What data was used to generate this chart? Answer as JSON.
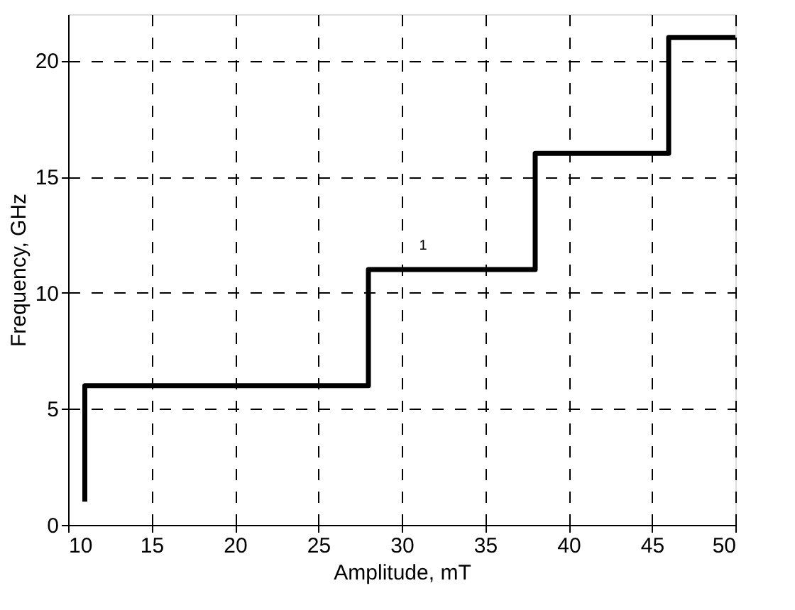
{
  "chart_data": {
    "type": "line",
    "xlabel": "Amplitude, mT",
    "ylabel": "Frequency, GHz",
    "x": [
      11,
      11,
      28,
      28,
      38,
      38,
      46,
      46,
      50
    ],
    "series": [
      {
        "color": "#000000",
        "values": [
          1,
          6,
          6,
          11,
          11,
          16,
          16,
          21,
          21
        ]
      }
    ],
    "xlim": [
      10,
      50
    ],
    "xticks": [
      10,
      15,
      20,
      25,
      30,
      35,
      40,
      45,
      50
    ],
    "ylim": [
      0,
      22
    ],
    "yticks": [
      0,
      5,
      10,
      15,
      20
    ],
    "grid": true,
    "marker": "none",
    "line_style": "solid",
    "annotations": [
      "1"
    ]
  }
}
